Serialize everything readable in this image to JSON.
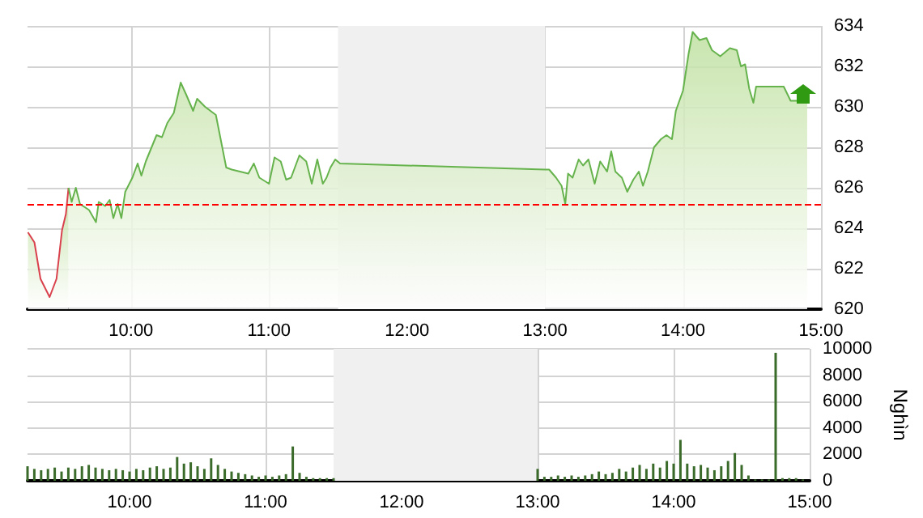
{
  "chart_data": [
    {
      "type": "area",
      "xlim": [
        9.25,
        15
      ],
      "xticks": [
        {
          "value": 10,
          "label": "10:00"
        },
        {
          "value": 11,
          "label": "11:00"
        },
        {
          "value": 12,
          "label": "12:00"
        },
        {
          "value": 13,
          "label": "13:00"
        },
        {
          "value": 14,
          "label": "14:00"
        },
        {
          "value": 15,
          "label": "15:00"
        }
      ],
      "ylim": [
        620,
        634
      ],
      "yticks": [
        620,
        622,
        624,
        626,
        628,
        630,
        632,
        634
      ],
      "grid": true,
      "series": [
        {
          "color": "#d9414d",
          "x": [
            9.253,
            9.3,
            9.344,
            9.41,
            9.46,
            9.5,
            9.528,
            9.547
          ],
          "values": [
            623.8,
            623.3,
            621.5,
            620.6,
            621.5,
            623.9,
            624.7,
            626.0
          ]
        },
        {
          "color": "#66b34d",
          "x": [
            9.547,
            9.57,
            9.6,
            9.63,
            9.696,
            9.746,
            9.766,
            9.813,
            9.845,
            9.872,
            9.903,
            9.93,
            9.958,
            10.01,
            10.048,
            10.075,
            10.107,
            10.155,
            10.185,
            10.224,
            10.263,
            10.31,
            10.36,
            10.4,
            10.45,
            10.479,
            10.537,
            10.615,
            10.69,
            10.73,
            10.79,
            10.85,
            10.89,
            10.93,
            11.0,
            11.04,
            11.085,
            11.124,
            11.16,
            11.22,
            11.27,
            11.31,
            11.35,
            11.39,
            11.417,
            11.445,
            11.48,
            11.515,
            13.0,
            13.03,
            13.08,
            13.12,
            13.147,
            13.167,
            13.2,
            13.244,
            13.276,
            13.315,
            13.36,
            13.4,
            13.45,
            13.48,
            13.51,
            13.557,
            13.596,
            13.64,
            13.68,
            13.71,
            13.745,
            13.79,
            13.84,
            13.88,
            13.92,
            13.948,
            14.0,
            14.04,
            14.07,
            14.12,
            14.17,
            14.21,
            14.27,
            14.34,
            14.39,
            14.42,
            14.45,
            14.48,
            14.51,
            14.53,
            14.73,
            14.78,
            14.9
          ],
          "values": [
            626.0,
            625.3,
            626.0,
            625.2,
            624.9,
            624.3,
            625.3,
            625.1,
            625.4,
            624.5,
            625.2,
            624.5,
            625.8,
            626.5,
            627.2,
            626.6,
            627.3,
            628.1,
            628.6,
            628.5,
            629.2,
            629.7,
            631.2,
            630.6,
            629.8,
            630.4,
            630.0,
            629.6,
            627.0,
            626.9,
            626.8,
            626.7,
            627.2,
            626.5,
            626.2,
            627.5,
            627.3,
            626.4,
            626.5,
            627.6,
            627.3,
            626.2,
            627.4,
            626.2,
            626.5,
            627.0,
            627.4,
            627.2,
            626.9,
            626.9,
            626.5,
            626.1,
            625.2,
            626.7,
            626.5,
            627.4,
            627.1,
            627.4,
            626.2,
            627.3,
            626.8,
            627.8,
            626.8,
            626.5,
            625.8,
            626.4,
            626.8,
            626.1,
            626.8,
            628.0,
            628.4,
            628.6,
            628.4,
            629.8,
            630.8,
            632.6,
            633.7,
            633.3,
            633.4,
            632.8,
            632.5,
            632.9,
            632.8,
            632.0,
            632.1,
            630.9,
            630.2,
            631.0,
            631.0,
            630.3,
            630.3
          ]
        }
      ],
      "ref_lines": [
        {
          "axis": "y",
          "value": 625.2,
          "color": "#ff0000",
          "line_style": "dashed"
        }
      ],
      "bands": [
        {
          "axis": "x",
          "from": 11.5,
          "to": 13,
          "color": "#f0f0f0"
        }
      ]
    },
    {
      "type": "bar",
      "y2label": "Nghìn",
      "xlim": [
        9.25,
        15
      ],
      "xticks": [
        {
          "value": 10,
          "label": "10:00"
        },
        {
          "value": 11,
          "label": "11:00"
        },
        {
          "value": 12,
          "label": "12:00"
        },
        {
          "value": 13,
          "label": "13:00"
        },
        {
          "value": 14,
          "label": "14:00"
        },
        {
          "value": 15,
          "label": "15:00"
        }
      ],
      "ylim": [
        0,
        10000
      ],
      "yticks": [
        0,
        2000,
        4000,
        6000,
        8000,
        10000
      ],
      "grid": true,
      "series": [
        {
          "color": "#3a6b2a",
          "x": [
            9.25,
            9.3,
            9.35,
            9.4,
            9.45,
            9.5,
            9.55,
            9.6,
            9.65,
            9.7,
            9.75,
            9.8,
            9.85,
            9.9,
            9.95,
            10.0,
            10.05,
            10.1,
            10.15,
            10.2,
            10.25,
            10.3,
            10.35,
            10.4,
            10.45,
            10.5,
            10.55,
            10.6,
            10.65,
            10.7,
            10.75,
            10.8,
            10.85,
            10.9,
            10.95,
            11.0,
            11.05,
            11.1,
            11.15,
            11.2,
            11.25,
            11.3,
            11.35,
            11.4,
            11.45,
            11.5,
            13.0,
            13.05,
            13.1,
            13.15,
            13.2,
            13.25,
            13.3,
            13.35,
            13.4,
            13.45,
            13.5,
            13.55,
            13.6,
            13.65,
            13.7,
            13.75,
            13.8,
            13.85,
            13.9,
            13.95,
            14.0,
            14.05,
            14.1,
            14.15,
            14.2,
            14.25,
            14.3,
            14.35,
            14.4,
            14.45,
            14.5,
            14.55,
            14.6,
            14.65,
            14.7,
            14.75,
            14.8,
            14.85,
            14.9,
            14.95
          ],
          "values": [
            1100,
            900,
            800,
            900,
            1000,
            700,
            1000,
            900,
            1100,
            1200,
            1000,
            900,
            800,
            900,
            800,
            700,
            900,
            800,
            1000,
            1100,
            900,
            1000,
            1800,
            1300,
            1400,
            1100,
            900,
            1700,
            1200,
            900,
            700,
            600,
            500,
            400,
            300,
            400,
            300,
            400,
            500,
            2600,
            600,
            300,
            200,
            200,
            200,
            200,
            900,
            300,
            300,
            400,
            300,
            400,
            300,
            400,
            500,
            700,
            500,
            600,
            900,
            700,
            1000,
            1200,
            900,
            1300,
            1000,
            1500,
            1300,
            3100,
            1300,
            1100,
            1200,
            1000,
            800,
            1100,
            1500,
            2100,
            1200,
            400,
            100,
            100,
            100,
            9700,
            200,
            200,
            200,
            100
          ]
        }
      ],
      "bands": [
        {
          "axis": "x",
          "from": 11.5,
          "to": 13,
          "color": "#f0f0f0"
        }
      ]
    }
  ]
}
